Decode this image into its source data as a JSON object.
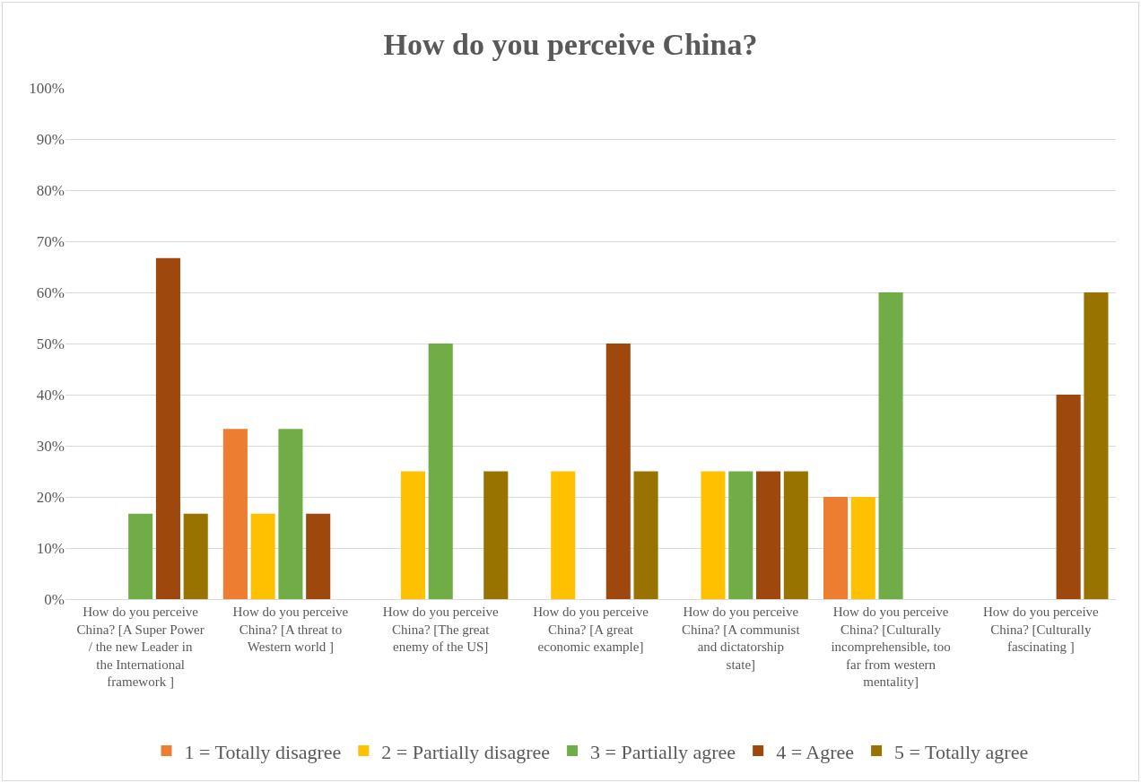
{
  "chart_data": {
    "type": "bar",
    "title": "How do you perceive China?",
    "categories": [
      "How do you perceive China? [A Super Power / the new Leader in the International framework ]",
      "How do you perceive China? [A threat to Western world ]",
      "How do you perceive China? [The great enemy of the US]",
      "How do you perceive China? [A great economic example]",
      "How do you perceive China? [A communist and dictatorship state]",
      "How do you perceive China? [Culturally incomprehensible, too far from western mentality]",
      "How do you perceive China? [Culturally fascinating ]"
    ],
    "series": [
      {
        "name": "1 = Totally disagree",
        "color": "#ed7d31",
        "values": [
          0,
          33.3,
          0,
          0,
          0,
          20,
          0
        ]
      },
      {
        "name": "2 = Partially disagree",
        "color": "#ffc000",
        "values": [
          0,
          16.7,
          25,
          25,
          25,
          20,
          0
        ]
      },
      {
        "name": "3 = Partially agree",
        "color": "#70ad47",
        "values": [
          16.7,
          33.3,
          50,
          0,
          25,
          60,
          0
        ]
      },
      {
        "name": "4 = Agree",
        "color": "#9e480e",
        "values": [
          66.7,
          16.7,
          0,
          50,
          25,
          0,
          40
        ]
      },
      {
        "name": "5 = Totally agree",
        "color": "#997300",
        "values": [
          16.7,
          0,
          25,
          25,
          25,
          0,
          60
        ]
      }
    ],
    "ylim": [
      0,
      100
    ],
    "yticks": [
      {
        "value": 0,
        "label": "0%"
      },
      {
        "value": 10,
        "label": "10%"
      },
      {
        "value": 20,
        "label": "20%"
      },
      {
        "value": 30,
        "label": "30%"
      },
      {
        "value": 40,
        "label": "40%"
      },
      {
        "value": 50,
        "label": "50%"
      },
      {
        "value": 60,
        "label": "60%"
      },
      {
        "value": 70,
        "label": "70%"
      },
      {
        "value": 80,
        "label": "80%"
      },
      {
        "value": 90,
        "label": "90%"
      },
      {
        "value": 100,
        "label": "100%"
      }
    ],
    "grid": "y",
    "legend": "bottom"
  }
}
